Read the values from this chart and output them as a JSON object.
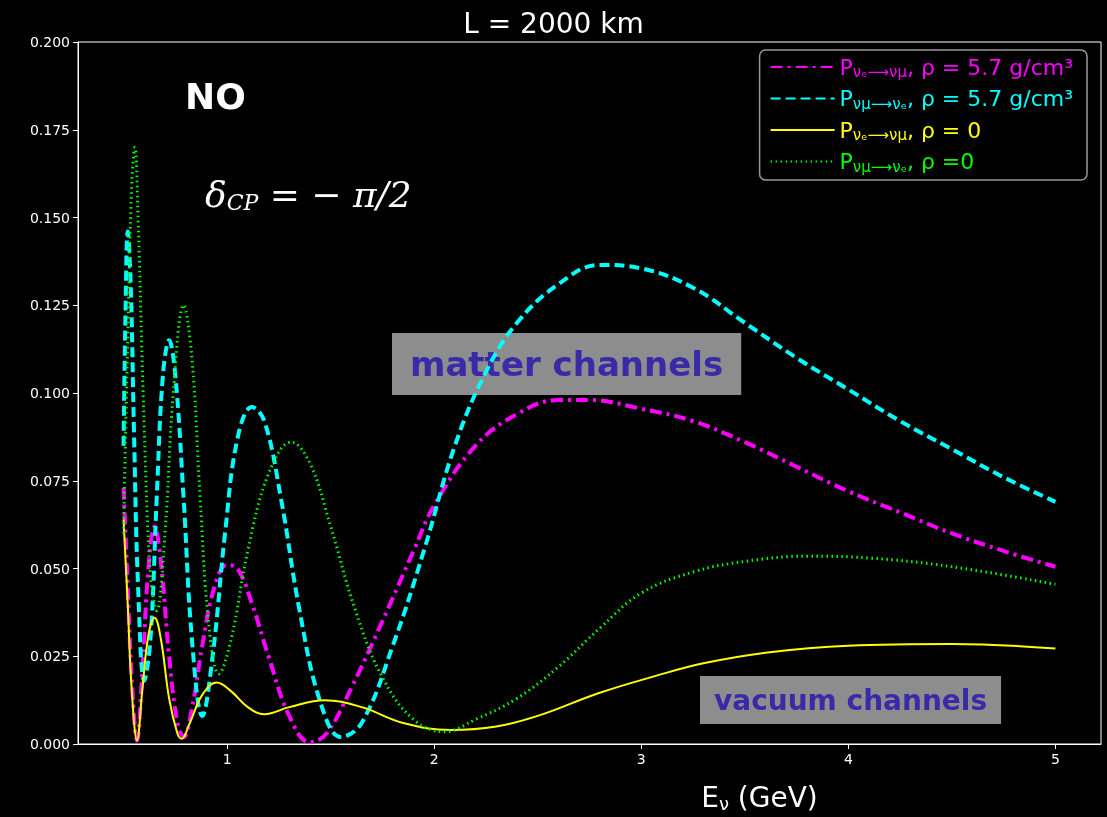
{
  "chart_data": {
    "type": "line",
    "title": "L = 2000 km",
    "xlabel": "E$_{ν}$ (GeV)",
    "annotations": [
      "NO",
      "δ$_{CP}$ = − π/2",
      "matter channels",
      "vacuum channels"
    ],
    "xlim": [
      0.28,
      5.22
    ],
    "xticks": [
      1,
      2,
      3,
      4,
      5
    ],
    "ylim": [
      0,
      0.2
    ],
    "yticks": [
      {
        "value": 0,
        "label": "0.000"
      },
      {
        "value": 0.025,
        "label": "0.025"
      },
      {
        "value": 0.05,
        "label": "0.050"
      },
      {
        "value": 0.075,
        "label": "0.075"
      },
      {
        "value": 0.1,
        "label": "0.100"
      },
      {
        "value": 0.125,
        "label": "0.125"
      },
      {
        "value": 0.15,
        "label": "0.150"
      },
      {
        "value": 0.175,
        "label": "0.175"
      },
      {
        "value": 0.2,
        "label": "0.200"
      }
    ],
    "grid": false,
    "legend": "top right",
    "marker": "none",
    "series": [
      {
        "name": "P$_{νₑ⟶νμ}$, ρ = 5.7 g/cm³",
        "color": "#ff00ff",
        "line_style": "dashdot",
        "x": [
          0.5,
          0.52,
          0.54,
          0.565,
          0.59,
          0.62,
          0.65,
          0.68,
          0.72,
          0.76,
          0.79,
          0.83,
          0.88,
          0.94,
          1.0,
          1.05,
          1.12,
          1.2,
          1.3,
          1.4,
          1.48,
          1.6,
          1.75,
          1.9,
          2.0,
          2.2,
          2.4,
          2.6,
          2.75,
          3.0,
          3.25,
          3.5,
          3.75,
          4.0,
          4.25,
          4.5,
          4.75,
          5.0
        ],
        "values": [
          0.073,
          0.045,
          0.018,
          0.001,
          0.02,
          0.05,
          0.062,
          0.052,
          0.025,
          0.006,
          0.002,
          0.01,
          0.028,
          0.045,
          0.051,
          0.05,
          0.04,
          0.025,
          0.008,
          0.0005,
          0.003,
          0.016,
          0.035,
          0.055,
          0.068,
          0.085,
          0.094,
          0.098,
          0.098,
          0.0955,
          0.092,
          0.086,
          0.079,
          0.072,
          0.066,
          0.06,
          0.055,
          0.0505
        ]
      },
      {
        "name": "P$_{νμ⟶νₑ}$, ρ = 5.7 g/cm³",
        "color": "#00ffff",
        "line_style": "dashed",
        "x": [
          0.5,
          0.51,
          0.52,
          0.535,
          0.55,
          0.57,
          0.6,
          0.63,
          0.66,
          0.69,
          0.72,
          0.75,
          0.79,
          0.83,
          0.88,
          0.93,
          0.99,
          1.05,
          1.12,
          1.18,
          1.26,
          1.35,
          1.45,
          1.55,
          1.65,
          1.8,
          1.95,
          2.1,
          2.25,
          2.4,
          2.6,
          2.8,
          3.0,
          3.25,
          3.5,
          3.75,
          4.0,
          4.25,
          4.5,
          4.75,
          5.0
        ],
        "values": [
          0.085,
          0.125,
          0.146,
          0.13,
          0.09,
          0.045,
          0.018,
          0.03,
          0.07,
          0.105,
          0.115,
          0.105,
          0.07,
          0.03,
          0.008,
          0.025,
          0.06,
          0.087,
          0.096,
          0.092,
          0.07,
          0.038,
          0.012,
          0.002,
          0.006,
          0.028,
          0.055,
          0.085,
          0.106,
          0.12,
          0.131,
          0.1365,
          0.1355,
          0.13,
          0.12,
          0.11,
          0.101,
          0.092,
          0.084,
          0.076,
          0.069
        ]
      },
      {
        "name": "P$_{νₑ⟶νμ}$, ρ = 0",
        "color": "#ffff00",
        "line_style": "solid",
        "x": [
          0.5,
          0.52,
          0.54,
          0.565,
          0.59,
          0.62,
          0.65,
          0.68,
          0.72,
          0.76,
          0.78,
          0.82,
          0.88,
          0.95,
          1.02,
          1.1,
          1.18,
          1.3,
          1.47,
          1.65,
          1.85,
          2.08,
          2.3,
          2.5,
          2.8,
          3.07,
          3.3,
          3.6,
          4.0,
          4.5,
          5.0
        ],
        "values": [
          0.064,
          0.04,
          0.015,
          0.001,
          0.015,
          0.031,
          0.036,
          0.03,
          0.013,
          0.003,
          0.0015,
          0.006,
          0.014,
          0.0175,
          0.015,
          0.0105,
          0.0085,
          0.0105,
          0.0125,
          0.0105,
          0.006,
          0.004,
          0.005,
          0.008,
          0.0146,
          0.0194,
          0.023,
          0.026,
          0.028,
          0.0285,
          0.0272
        ]
      },
      {
        "name": "P$_{νμ⟶νₑ}$, ρ =0",
        "color": "#00ff00",
        "line_style": "dotted",
        "x": [
          0.5,
          0.52,
          0.54,
          0.555,
          0.57,
          0.6,
          0.63,
          0.66,
          0.7,
          0.74,
          0.79,
          0.83,
          0.87,
          0.91,
          0.96,
          1.02,
          1.1,
          1.2,
          1.31,
          1.4,
          1.5,
          1.62,
          1.75,
          1.9,
          2.05,
          2.2,
          2.4,
          2.6,
          2.8,
          3.0,
          3.25,
          3.5,
          3.8,
          4.1,
          4.5,
          5.0
        ],
        "values": [
          0.06,
          0.115,
          0.16,
          0.17,
          0.15,
          0.09,
          0.048,
          0.038,
          0.06,
          0.1,
          0.125,
          0.11,
          0.07,
          0.035,
          0.02,
          0.03,
          0.055,
          0.077,
          0.086,
          0.08,
          0.062,
          0.038,
          0.019,
          0.007,
          0.0035,
          0.007,
          0.013,
          0.022,
          0.033,
          0.043,
          0.049,
          0.052,
          0.0535,
          0.053,
          0.0505,
          0.0455
        ]
      }
    ]
  }
}
